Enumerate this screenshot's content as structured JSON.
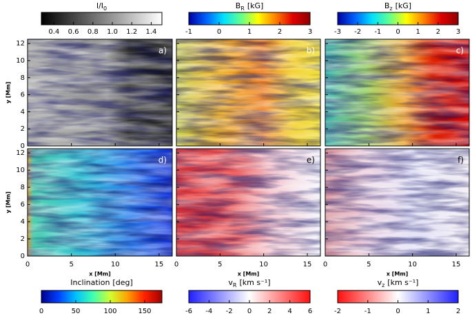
{
  "axes": {
    "xlabel": "x [Mm]",
    "ylabel": "y [Mm]",
    "xlim": [
      0,
      16.5
    ],
    "ylim": [
      0,
      12.5
    ],
    "xticks": [
      0,
      5,
      10,
      15
    ],
    "yticks": [
      0,
      2,
      4,
      6,
      8,
      10,
      12
    ]
  },
  "chart_data": [
    {
      "type": "heatmap",
      "label": "a)",
      "colorbar": {
        "title": {
          "base": "I/I",
          "sub": "0"
        },
        "colors": [
          "#000000",
          "#ffffff"
        ],
        "lim": [
          0.27,
          1.51
        ],
        "ticks": [
          0.4,
          0.6,
          0.8,
          {
            "value": 1.0,
            "label": "1.0"
          },
          1.2,
          1.4
        ]
      }
    },
    {
      "type": "heatmap",
      "label": "b)",
      "colorbar": {
        "title": {
          "base": "B",
          "sub": "R",
          "unit": "[kG]"
        },
        "colors": [
          "#0000a0",
          "#0060ff",
          "#00e0ff",
          "#60ff90",
          "#ffff00",
          "#ff8000",
          "#e00000",
          "#900000"
        ],
        "lim": [
          -1,
          3
        ],
        "ticks": [
          -1,
          0,
          1,
          2,
          3
        ]
      }
    },
    {
      "type": "heatmap",
      "label": "c)",
      "colorbar": {
        "title": {
          "base": "B",
          "sub": "z",
          "unit": "[kG]"
        },
        "colors": [
          "#0000a0",
          "#0060ff",
          "#00e0ff",
          "#60ff90",
          "#ffff00",
          "#ff8000",
          "#e00000",
          "#900000"
        ],
        "lim": [
          -3,
          3
        ],
        "ticks": [
          -3,
          -2,
          -1,
          0,
          1,
          2,
          3
        ]
      }
    },
    {
      "type": "heatmap",
      "label": "d)",
      "colorbar": {
        "title": {
          "base": "Inclination",
          "unit": "[deg]"
        },
        "colors": [
          "#000090",
          "#0040ff",
          "#00c0ff",
          "#40ffb0",
          "#d0ff30",
          "#ffa000",
          "#ff2000",
          "#a00000"
        ],
        "lim": [
          0,
          175
        ],
        "ticks": [
          0,
          50,
          100,
          150
        ]
      }
    },
    {
      "type": "heatmap",
      "label": "e)",
      "colorbar": {
        "title": {
          "base": "v",
          "sub": "R",
          "unit": "[km s⁻¹]"
        },
        "colors": [
          "#2020ff",
          "#ffffff",
          "#ff1010"
        ],
        "lim": [
          -6,
          6
        ],
        "ticks": [
          -6,
          -4,
          -2,
          0,
          2,
          4,
          6
        ]
      }
    },
    {
      "type": "heatmap",
      "label": "f)",
      "colorbar": {
        "title": {
          "base": "v",
          "sub": "z",
          "unit": "[km s⁻¹]"
        },
        "colors": [
          "#ff1010",
          "#ffffff",
          "#2020ff"
        ],
        "lim": [
          -2,
          2
        ],
        "ticks": [
          -2,
          -1,
          0,
          1,
          2
        ]
      }
    }
  ]
}
